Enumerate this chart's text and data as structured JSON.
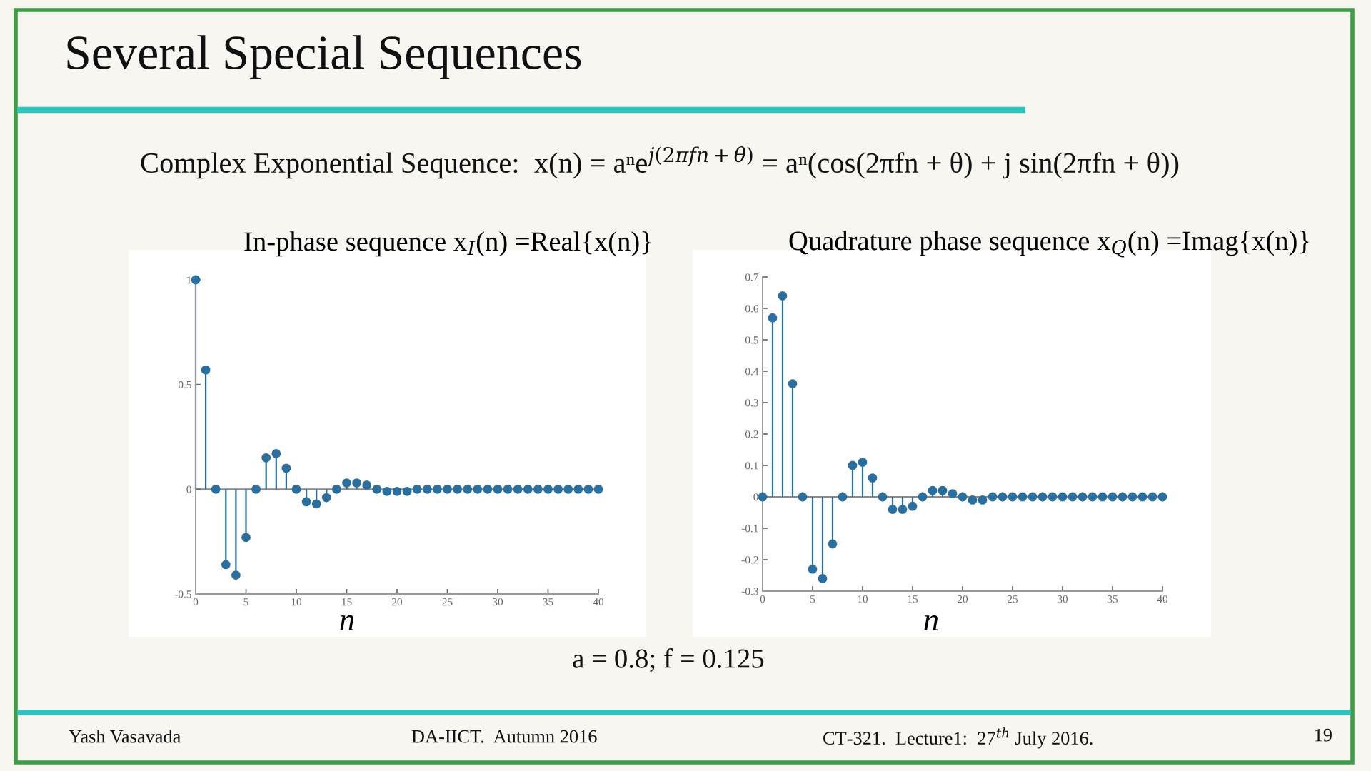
{
  "chart_data": [
    {
      "type": "lollipop",
      "title": "In-phase sequence x$_{I}$(n) =Real{x(n)}",
      "xlabel": "n",
      "color": "#2b6f9e",
      "marker": "circle",
      "x": [
        0,
        1,
        2,
        3,
        4,
        5,
        6,
        7,
        8,
        9,
        10,
        11,
        12,
        13,
        14,
        15,
        16,
        17,
        18,
        19,
        20,
        21,
        22,
        23,
        24,
        25,
        26,
        27,
        28,
        29,
        30,
        31,
        32,
        33,
        34,
        35,
        36,
        37,
        38,
        39,
        40
      ],
      "values": [
        1,
        0.57,
        0,
        -0.36,
        -0.41,
        -0.23,
        0,
        0.15,
        0.17,
        0.1,
        0,
        -0.06,
        -0.07,
        -0.04,
        0,
        0.03,
        0.03,
        0.02,
        0,
        -0.01,
        -0.01,
        -0.01,
        0,
        0,
        0,
        0,
        0,
        0,
        0,
        0,
        0,
        0,
        0,
        0,
        0,
        0,
        0,
        0,
        0,
        0,
        0
      ],
      "xlim": [
        0,
        40
      ],
      "xticks": [
        0,
        5,
        10,
        15,
        20,
        25,
        30,
        35,
        40
      ],
      "ylim": [
        -0.5,
        1
      ],
      "yticks": [
        -0.5,
        0,
        0.5,
        1
      ],
      "ref_lines": [
        {
          "axis": "y",
          "value": 0,
          "color": "#8a8a8a"
        }
      ],
      "annotations": [
        "Several Special Sequences",
        "Complex Exponential Sequence:  x(n) = aⁿe$^{j(2πfn+θ)}$ = aⁿ(cos(2πfn + θ) + j sin(2πfn + θ))",
        "a = 0.8; f = 0.125",
        "Yash Vasavada",
        "DA-IICT.  Autumn 2016",
        "CT-321.  Lecture1:  27$^{th}$ July 2016.",
        "19"
      ]
    },
    {
      "type": "lollipop",
      "title": "Quadrature phase sequence x$_{Q}$(n) =Imag{x(n)}",
      "xlabel": "n",
      "color": "#2b6f9e",
      "marker": "circle",
      "x": [
        0,
        1,
        2,
        3,
        4,
        5,
        6,
        7,
        8,
        9,
        10,
        11,
        12,
        13,
        14,
        15,
        16,
        17,
        18,
        19,
        20,
        21,
        22,
        23,
        24,
        25,
        26,
        27,
        28,
        29,
        30,
        31,
        32,
        33,
        34,
        35,
        36,
        37,
        38,
        39,
        40
      ],
      "values": [
        0,
        0.57,
        0.64,
        0.36,
        0,
        -0.23,
        -0.26,
        -0.15,
        0,
        0.1,
        0.11,
        0.06,
        0,
        -0.04,
        -0.04,
        -0.03,
        0,
        0.02,
        0.02,
        0.01,
        0,
        -0.01,
        -0.01,
        0,
        0,
        0,
        0,
        0,
        0,
        0,
        0,
        0,
        0,
        0,
        0,
        0,
        0,
        0,
        0,
        0,
        0
      ],
      "xlim": [
        0,
        40
      ],
      "xticks": [
        0,
        5,
        10,
        15,
        20,
        25,
        30,
        35,
        40
      ],
      "ylim": [
        -0.3,
        0.7
      ],
      "yticks": [
        -0.3,
        -0.2,
        -0.1,
        0,
        0.1,
        0.2,
        0.3,
        0.4,
        0.5,
        0.6,
        0.7
      ],
      "ref_lines": [
        {
          "axis": "y",
          "value": 0,
          "color": "#8a8a8a"
        }
      ]
    }
  ]
}
